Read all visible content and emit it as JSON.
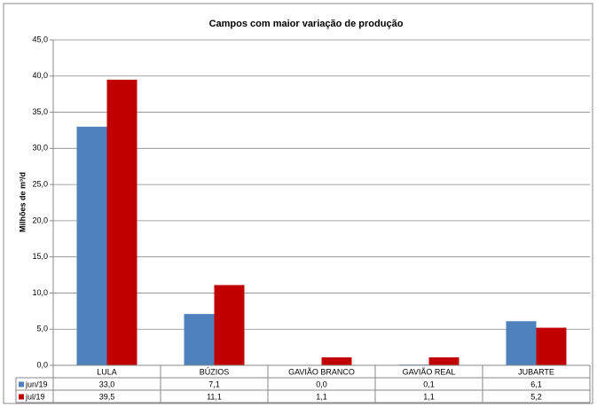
{
  "chart_data": {
    "type": "bar",
    "title": "Campos com maior variação de produção",
    "y_label": "Milhões de m³/d",
    "categories": [
      "LULA",
      "BÚZIOS",
      "GAVIÃO BRANCO",
      "GAVIÃO REAL",
      "JUBARTE"
    ],
    "series": [
      {
        "name": "jun/19",
        "color": "#4f81bd",
        "values": [
          33.0,
          7.1,
          0.0,
          0.1,
          6.1
        ],
        "value_labels": [
          "33,0",
          "7,1",
          "0,0",
          "0,1",
          "6,1"
        ]
      },
      {
        "name": "jul/19",
        "color": "#c00000",
        "values": [
          39.5,
          11.1,
          1.1,
          1.1,
          5.2
        ],
        "value_labels": [
          "39,5",
          "11,1",
          "1,1",
          "1,1",
          "5,2"
        ]
      }
    ],
    "ylim": [
      0,
      45
    ],
    "yticks": [
      {
        "value": 0,
        "label": "0,0"
      },
      {
        "value": 5,
        "label": "5,0"
      },
      {
        "value": 10,
        "label": "10,0"
      },
      {
        "value": 15,
        "label": "15,0"
      },
      {
        "value": 20,
        "label": "20,0"
      },
      {
        "value": 25,
        "label": "25,0"
      },
      {
        "value": 30,
        "label": "30,0"
      },
      {
        "value": 35,
        "label": "35,0"
      },
      {
        "value": 40,
        "label": "40,0"
      },
      {
        "value": 45,
        "label": "45,0"
      }
    ],
    "grid": true
  }
}
